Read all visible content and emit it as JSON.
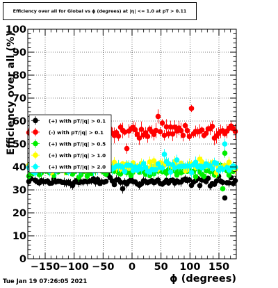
{
  "datestamp": "Tue Jan 19 07:26:05 2021",
  "chart_data": {
    "type": "scatter",
    "title": "Efficiency over all for Global vs ϕ (degrees) at |η| <= 1.0 at pT > 0.11",
    "xlabel": "ϕ (degrees)",
    "ylabel": "Efficiency over all (%)",
    "xlim": [
      -180,
      180
    ],
    "ylim": [
      0,
      100
    ],
    "xticks": [
      -150,
      -100,
      -50,
      0,
      50,
      100,
      150
    ],
    "yticks": [
      0,
      10,
      20,
      30,
      40,
      50,
      60,
      70,
      80,
      90,
      100
    ],
    "grid": true,
    "legend_position": "left, mid-height",
    "series": [
      {
        "name": "(+) with pT/|q| > 0.1",
        "color": "#000000",
        "base": 33.5,
        "scatter": 1.3,
        "err": 1.5,
        "outliers": [
          [
            -170,
            37.5
          ],
          [
            -40,
            36.5
          ],
          [
            150,
            36.0
          ],
          [
            160,
            26.5
          ],
          [
            103,
            32.0
          ],
          [
            -15,
            30.5
          ]
        ]
      },
      {
        "name": "(-) with pT/|q| > 0.1",
        "color": "#ff0000",
        "base": 55.0,
        "scatter": 2.3,
        "err": 2.6,
        "outliers": [
          [
            103,
            65.5
          ],
          [
            45,
            62.0
          ],
          [
            -150,
            40.5
          ],
          [
            -10,
            48.0
          ],
          [
            -180,
            55.0
          ]
        ]
      },
      {
        "name": "(+) with pT/|q| > 0.5",
        "color": "#00ee00",
        "base": 38.0,
        "scatter": 1.6,
        "err": 1.5,
        "outliers": [
          [
            155,
            30.5
          ],
          [
            160,
            46.0
          ],
          [
            -180,
            36.0
          ]
        ]
      },
      {
        "name": "(+) with pT/|q| > 1.0",
        "color": "#ffff00",
        "base": 40.5,
        "scatter": 1.8,
        "err": 1.8,
        "outliers": [
          [
            -50,
            42.0
          ],
          [
            -30,
            42.0
          ]
        ]
      },
      {
        "name": "(+) with pT/|q| > 2.0",
        "color": "#00ffff",
        "base": 40.0,
        "scatter": 2.0,
        "err": 2.0,
        "outliers": [
          [
            162,
            50.0
          ],
          [
            55,
            45.5
          ],
          [
            -170,
            38.0
          ]
        ]
      }
    ]
  }
}
